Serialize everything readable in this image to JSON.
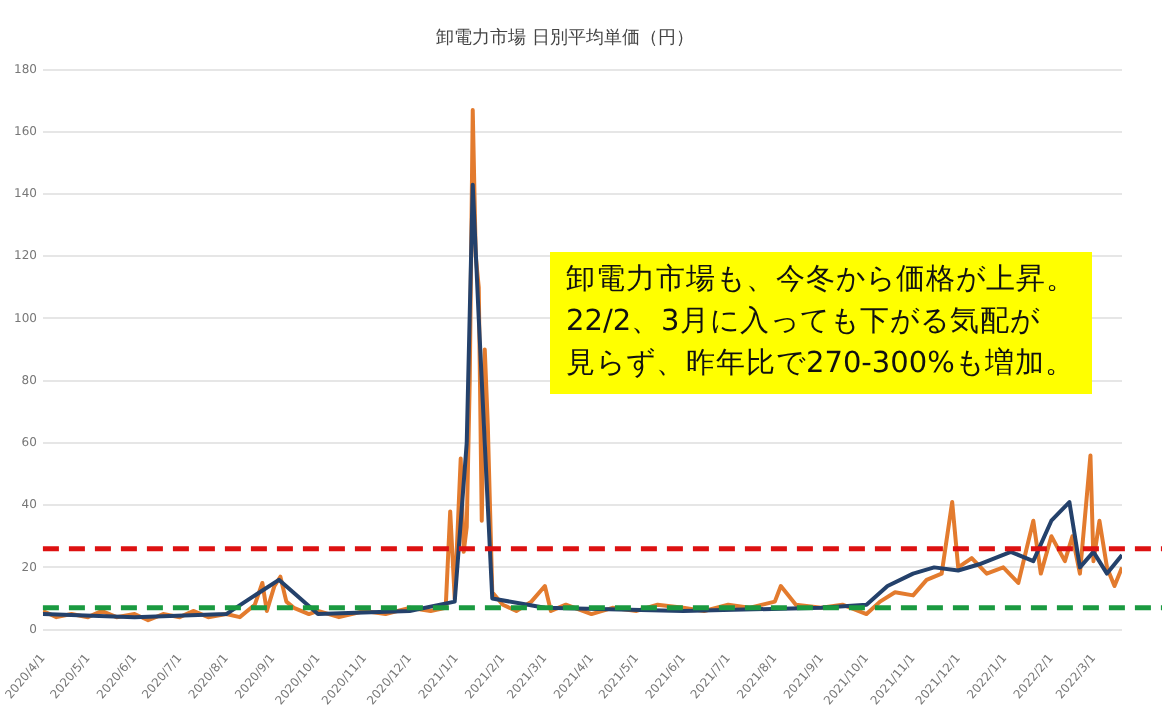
{
  "chart_data": {
    "type": "line",
    "title": "卸電力市場 日別平均単価（円）",
    "annotations": [
      "卸電力市場も、今冬から価格が上昇。",
      "22/2、3月に入っても下がる気配が",
      "見らず、昨年比で270-300%も増加。"
    ],
    "xlim": [
      "2020-04-01",
      "2022-03-20"
    ],
    "xticks": [
      {
        "value": "2020-04-01",
        "label": "2020/4/1"
      },
      {
        "value": "2020-05-01",
        "label": "2020/5/1"
      },
      {
        "value": "2020-06-01",
        "label": "2020/6/1"
      },
      {
        "value": "2020-07-01",
        "label": "2020/7/1"
      },
      {
        "value": "2020-08-01",
        "label": "2020/8/1"
      },
      {
        "value": "2020-09-01",
        "label": "2020/9/1"
      },
      {
        "value": "2020-10-01",
        "label": "2020/10/1"
      },
      {
        "value": "2020-11-01",
        "label": "2020/11/1"
      },
      {
        "value": "2020-12-01",
        "label": "2020/12/1"
      },
      {
        "value": "2021-01-01",
        "label": "2021/1/1"
      },
      {
        "value": "2021-02-01",
        "label": "2021/2/1"
      },
      {
        "value": "2021-03-01",
        "label": "2021/3/1"
      },
      {
        "value": "2021-04-01",
        "label": "2021/4/1"
      },
      {
        "value": "2021-05-01",
        "label": "2021/5/1"
      },
      {
        "value": "2021-06-01",
        "label": "2021/6/1"
      },
      {
        "value": "2021-07-01",
        "label": "2021/7/1"
      },
      {
        "value": "2021-08-01",
        "label": "2021/8/1"
      },
      {
        "value": "2021-09-01",
        "label": "2021/9/1"
      },
      {
        "value": "2021-10-01",
        "label": "2021/10/1"
      },
      {
        "value": "2021-11-01",
        "label": "2021/11/1"
      },
      {
        "value": "2021-12-01",
        "label": "2021/12/1"
      },
      {
        "value": "2022-01-01",
        "label": "2022/1/1"
      },
      {
        "value": "2022-02-01",
        "label": "2022/2/1"
      },
      {
        "value": "2022-03-01",
        "label": "2022/3/1"
      }
    ],
    "ylim": [
      0,
      180
    ],
    "yticks": [
      0,
      20,
      40,
      60,
      80,
      100,
      120,
      140,
      160,
      180
    ],
    "grid": "y",
    "marker": "none",
    "line_style": "solid",
    "series": [
      {
        "color": "#e37b2e",
        "x": [
          "2020-04-01",
          "2020-04-10",
          "2020-04-20",
          "2020-05-01",
          "2020-05-10",
          "2020-05-20",
          "2020-06-01",
          "2020-06-10",
          "2020-06-20",
          "2020-07-01",
          "2020-07-10",
          "2020-07-20",
          "2020-08-01",
          "2020-08-10",
          "2020-08-20",
          "2020-08-25",
          "2020-08-28",
          "2020-09-02",
          "2020-09-06",
          "2020-09-10",
          "2020-09-15",
          "2020-09-25",
          "2020-10-01",
          "2020-10-15",
          "2020-11-01",
          "2020-11-15",
          "2020-12-01",
          "2020-12-15",
          "2020-12-25",
          "2020-12-28",
          "2020-12-31",
          "2021-01-04",
          "2021-01-06",
          "2021-01-08",
          "2021-01-10",
          "2021-01-12",
          "2021-01-14",
          "2021-01-16",
          "2021-01-18",
          "2021-01-20",
          "2021-01-22",
          "2021-01-25",
          "2021-02-01",
          "2021-02-10",
          "2021-02-20",
          "2021-03-01",
          "2021-03-05",
          "2021-03-15",
          "2021-04-01",
          "2021-04-15",
          "2021-05-01",
          "2021-05-15",
          "2021-06-01",
          "2021-06-15",
          "2021-07-01",
          "2021-07-15",
          "2021-08-01",
          "2021-08-05",
          "2021-08-15",
          "2021-09-01",
          "2021-09-15",
          "2021-10-01",
          "2021-10-10",
          "2021-10-20",
          "2021-11-01",
          "2021-11-10",
          "2021-11-20",
          "2021-11-27",
          "2021-12-01",
          "2021-12-10",
          "2021-12-20",
          "2021-12-31",
          "2022-01-10",
          "2022-01-20",
          "2022-01-25",
          "2022-02-01",
          "2022-02-10",
          "2022-02-15",
          "2022-02-20",
          "2022-02-27",
          "2022-03-01",
          "2022-03-05",
          "2022-03-10",
          "2022-03-15",
          "2022-03-20"
        ],
        "values": [
          6,
          4,
          5,
          4,
          6,
          4,
          5,
          3,
          5,
          4,
          6,
          4,
          5,
          4,
          8,
          15,
          6,
          14,
          17,
          9,
          7,
          5,
          6,
          4,
          6,
          5,
          7,
          6,
          7,
          38,
          10,
          55,
          25,
          33,
          80,
          167,
          120,
          110,
          35,
          90,
          66,
          12,
          8,
          6,
          9,
          14,
          6,
          8,
          5,
          7,
          6,
          8,
          7,
          6,
          8,
          7,
          9,
          14,
          8,
          7,
          8,
          5,
          9,
          12,
          11,
          16,
          18,
          41,
          20,
          23,
          18,
          20,
          15,
          35,
          18,
          30,
          22,
          30,
          18,
          56,
          22,
          35,
          20,
          14,
          20
        ]
      },
      {
        "color": "#24416b",
        "x": [
          "2020-04-01",
          "2020-06-01",
          "2020-08-01",
          "2020-09-05",
          "2020-10-01",
          "2020-12-01",
          "2020-12-31",
          "2021-01-08",
          "2021-01-12",
          "2021-01-16",
          "2021-01-25",
          "2021-03-01",
          "2021-06-01",
          "2021-09-01",
          "2021-10-01",
          "2021-10-15",
          "2021-11-01",
          "2021-11-15",
          "2021-12-01",
          "2021-12-15",
          "2022-01-05",
          "2022-01-20",
          "2022-02-01",
          "2022-02-13",
          "2022-02-20",
          "2022-03-01",
          "2022-03-10",
          "2022-03-20"
        ],
        "values": [
          5,
          4,
          5,
          16,
          5,
          6,
          9,
          60,
          143,
          100,
          10,
          7,
          6,
          7,
          8,
          14,
          18,
          20,
          19,
          21,
          25,
          22,
          35,
          41,
          20,
          25,
          18,
          24
        ]
      }
    ],
    "ref_lines": [
      {
        "axis": "y",
        "value": 26,
        "color": "#dd1111",
        "line_style": "dashed"
      },
      {
        "axis": "y",
        "value": 7,
        "color": "#1a9a40",
        "line_style": "dashed"
      }
    ]
  }
}
